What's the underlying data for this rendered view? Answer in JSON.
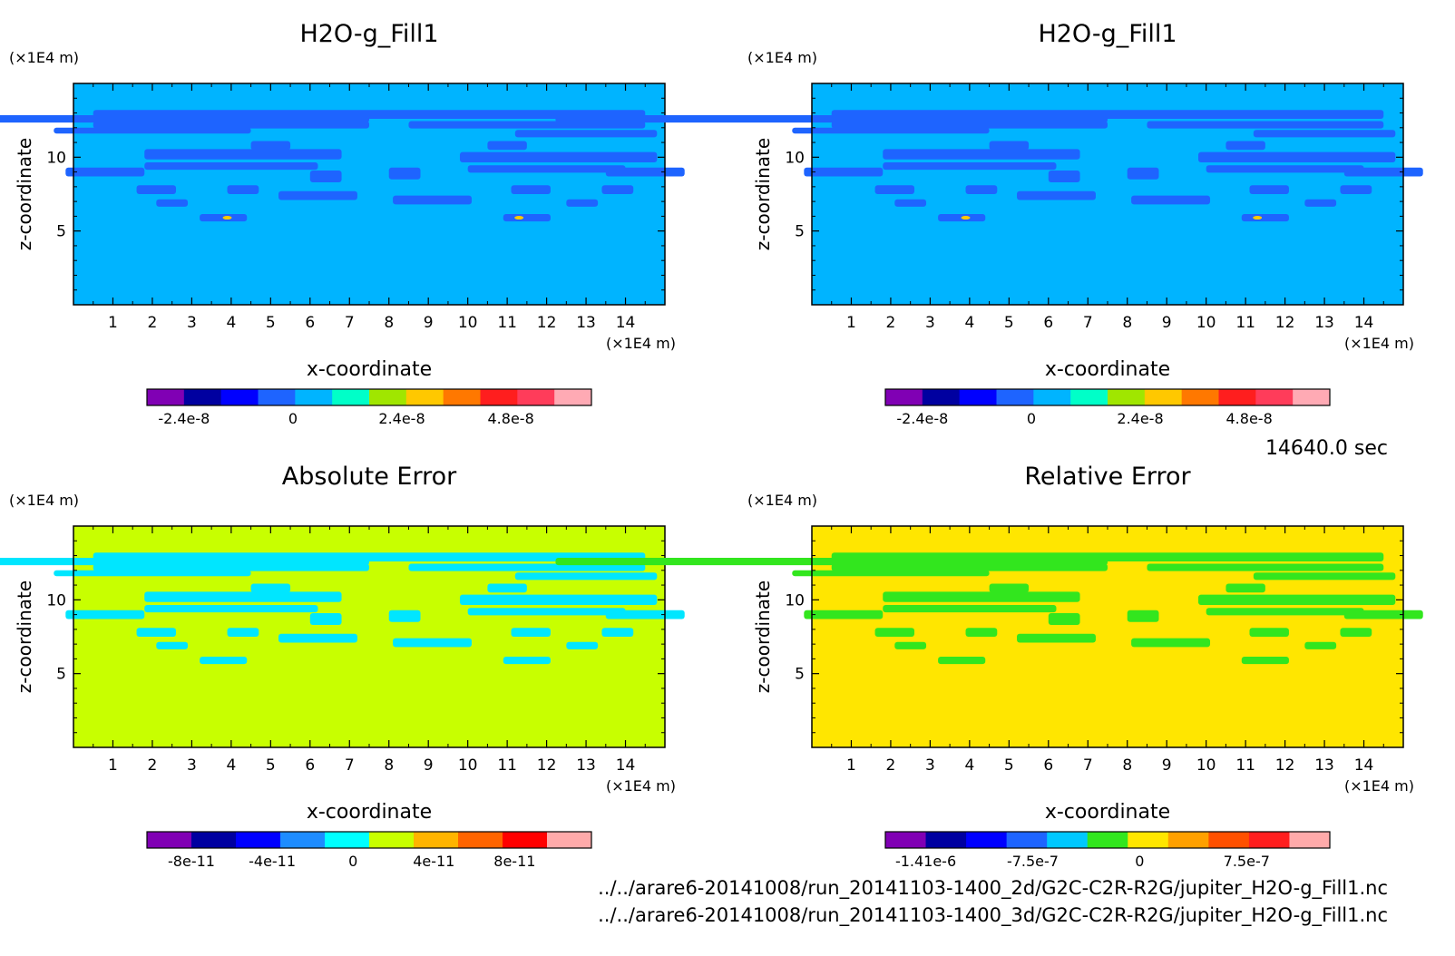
{
  "time_label": "14640.0 sec",
  "files": [
    "../../arare6-20141008/run_20141103-1400_2d/G2C-C2R-R2G/jupiter_H2O-g_Fill1.nc",
    "../../arare6-20141008/run_20141103-1400_3d/G2C-C2R-R2G/jupiter_H2O-g_Fill1.nc"
  ],
  "chart_data": [
    {
      "type": "heatmap",
      "title": "H2O-g_Fill1",
      "xlabel": "x-coordinate",
      "ylabel": "z-coordinate",
      "x_unit": "(×1E4 m)",
      "y_unit": "(×1E4 m)",
      "xlim": [
        0,
        15
      ],
      "ylim": [
        0,
        15
      ],
      "x_ticks": [
        "1",
        "2",
        "3",
        "4",
        "5",
        "6",
        "7",
        "8",
        "9",
        "10",
        "11",
        "12",
        "13",
        "14"
      ],
      "y_ticks": [
        "5",
        "10"
      ],
      "background_color": "#00b4ff",
      "feature_color": "#1e64ff",
      "colorbar": {
        "colors": [
          "#8000b4",
          "#0000a0",
          "#0000ff",
          "#1e64ff",
          "#00b4ff",
          "#00ffc8",
          "#a0e600",
          "#ffc800",
          "#ff7800",
          "#ff1e1e",
          "#ff3c5a",
          "#ffaab4"
        ],
        "labels": [
          "-2.4e-8",
          "0",
          "2.4e-8",
          "4.8e-8"
        ]
      }
    },
    {
      "type": "heatmap",
      "title": "H2O-g_Fill1",
      "xlabel": "x-coordinate",
      "ylabel": "z-coordinate",
      "x_unit": "(×1E4 m)",
      "y_unit": "(×1E4 m)",
      "xlim": [
        0,
        15
      ],
      "ylim": [
        0,
        15
      ],
      "x_ticks": [
        "1",
        "2",
        "3",
        "4",
        "5",
        "6",
        "7",
        "8",
        "9",
        "10",
        "11",
        "12",
        "13",
        "14"
      ],
      "y_ticks": [
        "5",
        "10"
      ],
      "background_color": "#00b4ff",
      "feature_color": "#1e64ff",
      "colorbar": {
        "colors": [
          "#8000b4",
          "#0000a0",
          "#0000ff",
          "#1e64ff",
          "#00b4ff",
          "#00ffc8",
          "#a0e600",
          "#ffc800",
          "#ff7800",
          "#ff1e1e",
          "#ff3c5a",
          "#ffaab4"
        ],
        "labels": [
          "-2.4e-8",
          "0",
          "2.4e-8",
          "4.8e-8"
        ]
      }
    },
    {
      "type": "heatmap",
      "title": "Absolute Error",
      "xlabel": "x-coordinate",
      "ylabel": "z-coordinate",
      "x_unit": "(×1E4 m)",
      "y_unit": "(×1E4 m)",
      "xlim": [
        0,
        15
      ],
      "ylim": [
        0,
        15
      ],
      "x_ticks": [
        "1",
        "2",
        "3",
        "4",
        "5",
        "6",
        "7",
        "8",
        "9",
        "10",
        "11",
        "12",
        "13",
        "14"
      ],
      "y_ticks": [
        "5",
        "10"
      ],
      "background_color": "#c8ff00",
      "feature_color": "#00e6ff",
      "colorbar": {
        "colors": [
          "#8000b4",
          "#0000a0",
          "#0000ff",
          "#1e8cff",
          "#00ffff",
          "#c8ff00",
          "#ffb400",
          "#ff6400",
          "#ff0000",
          "#ffaaaa"
        ],
        "labels": [
          "-8e-11",
          "-4e-11",
          "0",
          "4e-11",
          "8e-11"
        ]
      }
    },
    {
      "type": "heatmap",
      "title": "Relative Error",
      "xlabel": "x-coordinate",
      "ylabel": "z-coordinate",
      "x_unit": "(×1E4 m)",
      "y_unit": "(×1E4 m)",
      "xlim": [
        0,
        15
      ],
      "ylim": [
        0,
        15
      ],
      "x_ticks": [
        "1",
        "2",
        "3",
        "4",
        "5",
        "6",
        "7",
        "8",
        "9",
        "10",
        "11",
        "12",
        "13",
        "14"
      ],
      "y_ticks": [
        "5",
        "10"
      ],
      "background_color": "#ffe600",
      "feature_color": "#32e61e",
      "colorbar": {
        "colors": [
          "#8000b4",
          "#0000a0",
          "#0000ff",
          "#1e64ff",
          "#00c8ff",
          "#32e61e",
          "#ffe600",
          "#ffa000",
          "#ff5000",
          "#ff1e1e",
          "#ffaaaa"
        ],
        "labels": [
          "-1.41e-6",
          "-7.5e-7",
          "0",
          "7.5e-7"
        ]
      }
    }
  ]
}
